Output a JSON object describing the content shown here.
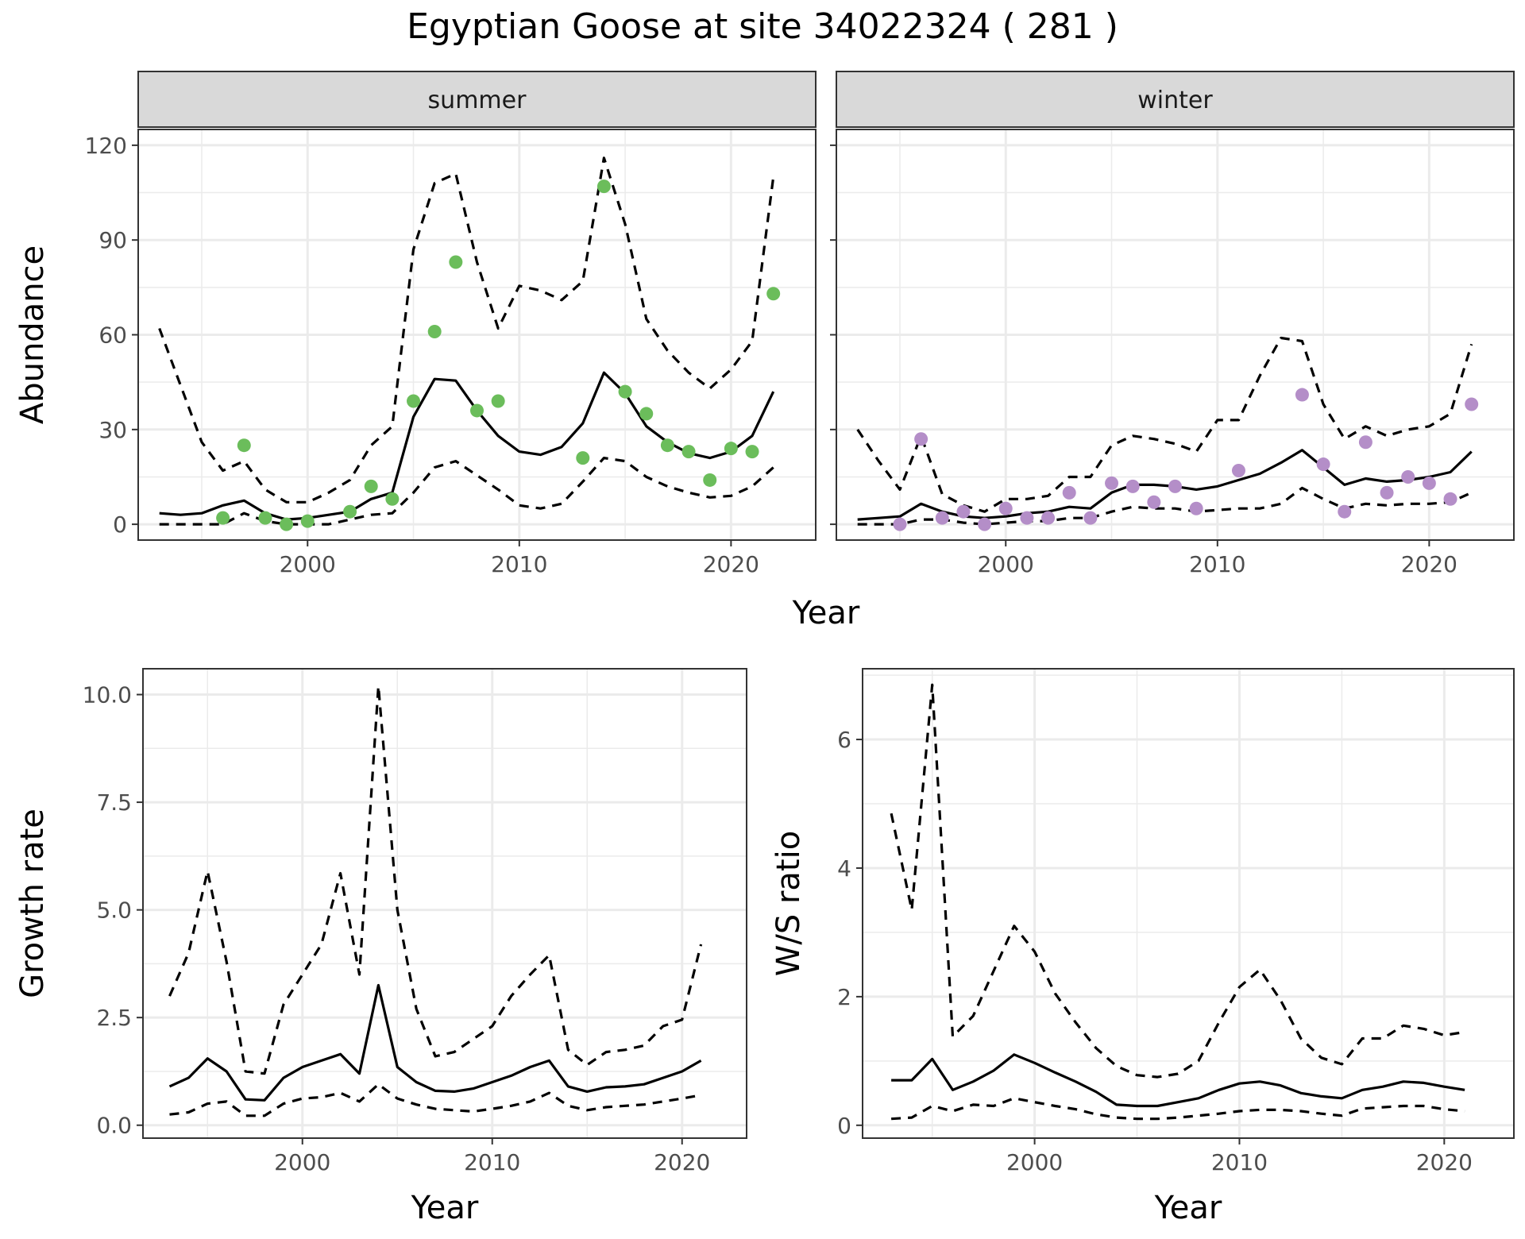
{
  "title": "Egyptian Goose at site 34022324 ( 281 )",
  "colors": {
    "summer_points": "#6bbd5b",
    "winter_points": "#b48ec8",
    "line": "#000000",
    "grid": "#ebebeb",
    "strip": "#d9d9d9"
  },
  "chart_data": [
    {
      "type": "line",
      "panel": "summer",
      "xlabel": "Year",
      "ylabel": "Abundance",
      "xlim": [
        1992,
        2024
      ],
      "ylim": [
        -5,
        125
      ],
      "x_ticks": [
        2000,
        2010,
        2020
      ],
      "y_ticks": [
        0,
        30,
        60,
        90,
        120
      ],
      "grid": true,
      "point_color": "#6bbd5b",
      "x": [
        1993,
        1994,
        1995,
        1996,
        1997,
        1998,
        1999,
        2000,
        2001,
        2002,
        2003,
        2004,
        2005,
        2006,
        2007,
        2008,
        2009,
        2010,
        2011,
        2012,
        2013,
        2014,
        2015,
        2016,
        2017,
        2018,
        2019,
        2020,
        2021,
        2022
      ],
      "series": [
        {
          "role": "fit",
          "style": "solid",
          "values": [
            3.5,
            3,
            3.5,
            6,
            7.5,
            3.5,
            1.5,
            2,
            3,
            4,
            8,
            10,
            34,
            46,
            45.5,
            36,
            28,
            23,
            22,
            24.5,
            32,
            48,
            41.5,
            31,
            26,
            22.5,
            21,
            23,
            28,
            42
          ]
        },
        {
          "role": "upper",
          "style": "dashed",
          "values": [
            62,
            44,
            26,
            17,
            20,
            11,
            7,
            7,
            10,
            14,
            25,
            31,
            87,
            108,
            111,
            83,
            62,
            75.5,
            74,
            71,
            77,
            116,
            95,
            65,
            55,
            48,
            43,
            49,
            58,
            110
          ]
        },
        {
          "role": "lower",
          "style": "dashed",
          "values": [
            0,
            0,
            0,
            0,
            3.5,
            1,
            0,
            0,
            0,
            1.5,
            3,
            3.5,
            10,
            18,
            20,
            15.5,
            11,
            6,
            5,
            6.5,
            13.5,
            21,
            20,
            15,
            12,
            10,
            8.5,
            9,
            12,
            18
          ]
        }
      ],
      "points": {
        "x": [
          1996,
          1997,
          1998,
          1999,
          2000,
          2002,
          2003,
          2004,
          2005,
          2006,
          2007,
          2008,
          2009,
          2013,
          2014,
          2015,
          2016,
          2017,
          2018,
          2019,
          2020,
          2021,
          2022
        ],
        "y": [
          2,
          25,
          2,
          0,
          1,
          4,
          12,
          8,
          39,
          61,
          83,
          36,
          39,
          21,
          107,
          42,
          35,
          25,
          23,
          14,
          24,
          23,
          73
        ]
      }
    },
    {
      "type": "line",
      "panel": "winter",
      "xlabel": "Year",
      "ylabel": "Abundance",
      "xlim": [
        1992,
        2024
      ],
      "ylim": [
        -5,
        125
      ],
      "x_ticks": [
        2000,
        2010,
        2020
      ],
      "y_ticks": [
        0,
        30,
        60,
        90,
        120
      ],
      "grid": true,
      "point_color": "#b48ec8",
      "x": [
        1993,
        1994,
        1995,
        1996,
        1997,
        1998,
        1999,
        2000,
        2001,
        2002,
        2003,
        2004,
        2005,
        2006,
        2007,
        2008,
        2009,
        2010,
        2011,
        2012,
        2013,
        2014,
        2015,
        2016,
        2017,
        2018,
        2019,
        2020,
        2021,
        2022
      ],
      "series": [
        {
          "role": "fit",
          "style": "solid",
          "values": [
            1.5,
            2,
            2.5,
            6.5,
            4,
            2.5,
            2,
            2.5,
            3.5,
            4,
            5.5,
            5,
            10,
            12.5,
            12.5,
            12,
            11,
            12,
            14,
            16,
            19.5,
            23.5,
            18,
            12.5,
            14.5,
            13.5,
            14,
            15,
            16.5,
            23
          ]
        },
        {
          "role": "upper",
          "style": "dashed",
          "values": [
            30,
            20,
            11,
            28,
            9.5,
            6,
            4,
            8,
            8,
            9,
            15,
            15,
            25,
            28,
            27,
            25.5,
            23,
            33,
            33,
            47,
            59,
            58,
            38,
            27,
            31,
            28,
            30,
            31,
            35,
            57
          ]
        },
        {
          "role": "lower",
          "style": "dashed",
          "values": [
            0,
            0,
            0,
            1.5,
            1.5,
            0.5,
            0,
            0.5,
            1,
            1,
            2,
            2,
            4,
            5.5,
            5,
            5,
            4,
            4.5,
            5,
            5,
            6.5,
            11.5,
            8,
            5,
            6.5,
            6,
            6.5,
            6.5,
            7,
            10
          ]
        }
      ],
      "points": {
        "x": [
          1995,
          1996,
          1997,
          1998,
          1999,
          2000,
          2001,
          2002,
          2003,
          2004,
          2005,
          2006,
          2007,
          2008,
          2009,
          2011,
          2014,
          2015,
          2016,
          2017,
          2018,
          2019,
          2020,
          2021,
          2022
        ],
        "y": [
          0,
          27,
          2,
          4,
          0,
          5,
          2,
          2,
          10,
          2,
          13,
          12,
          7,
          12,
          5,
          17,
          41,
          19,
          4,
          26,
          10,
          15,
          13,
          8,
          38
        ]
      }
    },
    {
      "type": "line",
      "panel": "growth",
      "xlabel": "Year",
      "ylabel": "Growth rate",
      "xlim": [
        1991.6,
        2023.4
      ],
      "ylim": [
        -0.3,
        10.6
      ],
      "x_ticks": [
        2000,
        2010,
        2020
      ],
      "y_ticks": [
        0.0,
        2.5,
        5.0,
        7.5,
        10.0
      ],
      "y_tick_labels": [
        "0.0",
        "2.5",
        "5.0",
        "7.5",
        "10.0"
      ],
      "grid": true,
      "x": [
        1993,
        1994,
        1995,
        1996,
        1997,
        1998,
        1999,
        2000,
        2001,
        2002,
        2003,
        2004,
        2005,
        2006,
        2007,
        2008,
        2009,
        2010,
        2011,
        2012,
        2013,
        2014,
        2015,
        2016,
        2017,
        2018,
        2019,
        2020,
        2021
      ],
      "series": [
        {
          "role": "fit",
          "style": "solid",
          "values": [
            0.9,
            1.1,
            1.55,
            1.25,
            0.6,
            0.58,
            1.1,
            1.35,
            1.5,
            1.65,
            1.2,
            3.25,
            1.35,
            1.0,
            0.8,
            0.78,
            0.85,
            1.0,
            1.15,
            1.35,
            1.5,
            0.9,
            0.78,
            0.88,
            0.9,
            0.95,
            1.1,
            1.25,
            1.5
          ]
        },
        {
          "role": "upper",
          "style": "dashed",
          "values": [
            3.0,
            4.0,
            5.9,
            3.8,
            1.25,
            1.2,
            2.8,
            3.5,
            4.2,
            5.85,
            3.5,
            10.2,
            5.0,
            2.7,
            1.6,
            1.7,
            2.0,
            2.3,
            3.0,
            3.5,
            3.95,
            1.75,
            1.4,
            1.7,
            1.75,
            1.85,
            2.3,
            2.45,
            4.2
          ]
        },
        {
          "role": "lower",
          "style": "dashed",
          "values": [
            0.25,
            0.3,
            0.5,
            0.55,
            0.22,
            0.22,
            0.5,
            0.62,
            0.65,
            0.75,
            0.55,
            0.95,
            0.62,
            0.48,
            0.38,
            0.35,
            0.32,
            0.38,
            0.45,
            0.55,
            0.75,
            0.45,
            0.35,
            0.42,
            0.45,
            0.48,
            0.55,
            0.62,
            0.7
          ]
        }
      ]
    },
    {
      "type": "line",
      "panel": "ratio",
      "xlabel": "Year",
      "ylabel": "W/S ratio",
      "xlim": [
        1991.6,
        2023.4
      ],
      "ylim": [
        -0.2,
        7.1
      ],
      "x_ticks": [
        2000,
        2010,
        2020
      ],
      "y_ticks": [
        0,
        2,
        4,
        6
      ],
      "grid": true,
      "x": [
        1993,
        1994,
        1995,
        1996,
        1997,
        1998,
        1999,
        2000,
        2001,
        2002,
        2003,
        2004,
        2005,
        2006,
        2007,
        2008,
        2009,
        2010,
        2011,
        2012,
        2013,
        2014,
        2015,
        2016,
        2017,
        2018,
        2019,
        2020,
        2021
      ],
      "series": [
        {
          "role": "fit",
          "style": "solid",
          "values": [
            0.7,
            0.7,
            1.03,
            0.55,
            0.68,
            0.85,
            1.1,
            0.97,
            0.82,
            0.68,
            0.52,
            0.32,
            0.3,
            0.3,
            0.36,
            0.42,
            0.55,
            0.65,
            0.68,
            0.62,
            0.5,
            0.45,
            0.42,
            0.55,
            0.6,
            0.68,
            0.66,
            0.6,
            0.55
          ]
        },
        {
          "role": "upper",
          "style": "dashed",
          "values": [
            4.85,
            3.35,
            6.85,
            1.38,
            1.7,
            2.4,
            3.1,
            2.7,
            2.05,
            1.6,
            1.2,
            0.92,
            0.78,
            0.75,
            0.8,
            1.0,
            1.6,
            2.15,
            2.42,
            1.95,
            1.35,
            1.05,
            0.95,
            1.35,
            1.35,
            1.55,
            1.5,
            1.4,
            1.45
          ]
        },
        {
          "role": "lower",
          "style": "dashed",
          "values": [
            0.1,
            0.12,
            0.3,
            0.22,
            0.32,
            0.3,
            0.42,
            0.36,
            0.3,
            0.25,
            0.17,
            0.12,
            0.1,
            0.1,
            0.12,
            0.15,
            0.18,
            0.22,
            0.24,
            0.24,
            0.22,
            0.18,
            0.15,
            0.26,
            0.28,
            0.3,
            0.3,
            0.25,
            0.22
          ]
        }
      ]
    }
  ]
}
